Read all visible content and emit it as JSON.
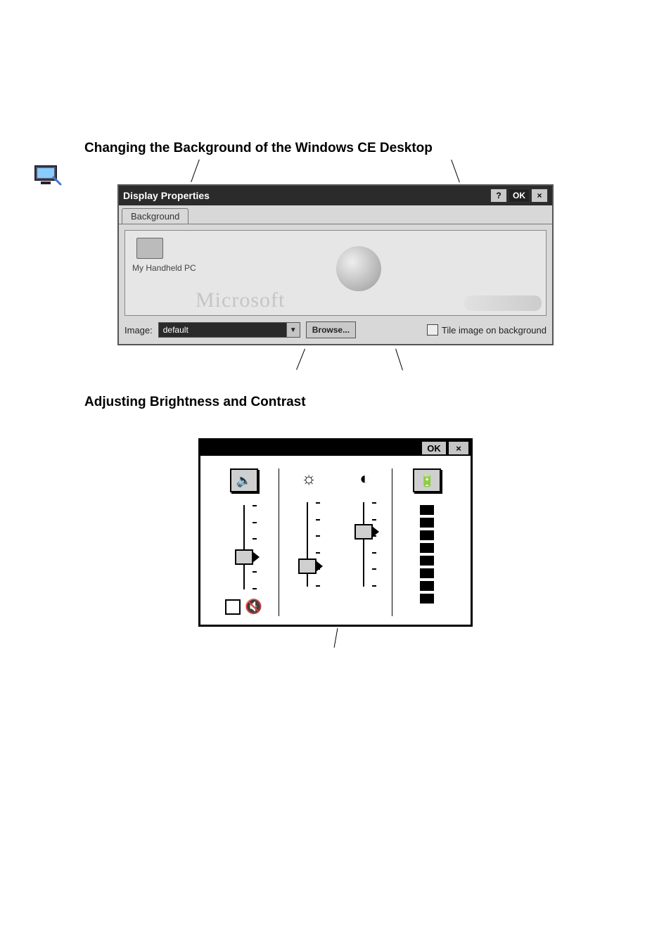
{
  "headings": {
    "h1": "Changing the Background of the Windows CE Desktop",
    "h2": "Adjusting Brightness and Contrast"
  },
  "displayProperties": {
    "title": "Display Properties",
    "helpGlyph": "?",
    "okLabel": "OK",
    "closeGlyph": "×",
    "tabLabel": "Background",
    "desktopIconLabel": "My Handheld PC",
    "watermark": "Microsoft",
    "imageLabel": "Image:",
    "imageValue": "default",
    "dropdownGlyph": "▼",
    "browseLabel": "Browse...",
    "tileLabel": "Tile image on background"
  },
  "brightnessPanel": {
    "okLabel": "OK",
    "closeGlyph": "×",
    "volumeGlyph": "🔈",
    "brightnessGlyph": "☼",
    "contrastGlyph": "◐",
    "batteryGlyph": "🔋",
    "muteGlyph": "🔇",
    "sliders": {
      "volume_pos_pct": 62,
      "brightness_pos_pct": 78,
      "contrast_pos_pct": 30
    },
    "bar_segments": 8,
    "colors": {
      "border": "#000000",
      "background": "#ffffff",
      "thumb_fill": "#cfcfcf"
    }
  }
}
